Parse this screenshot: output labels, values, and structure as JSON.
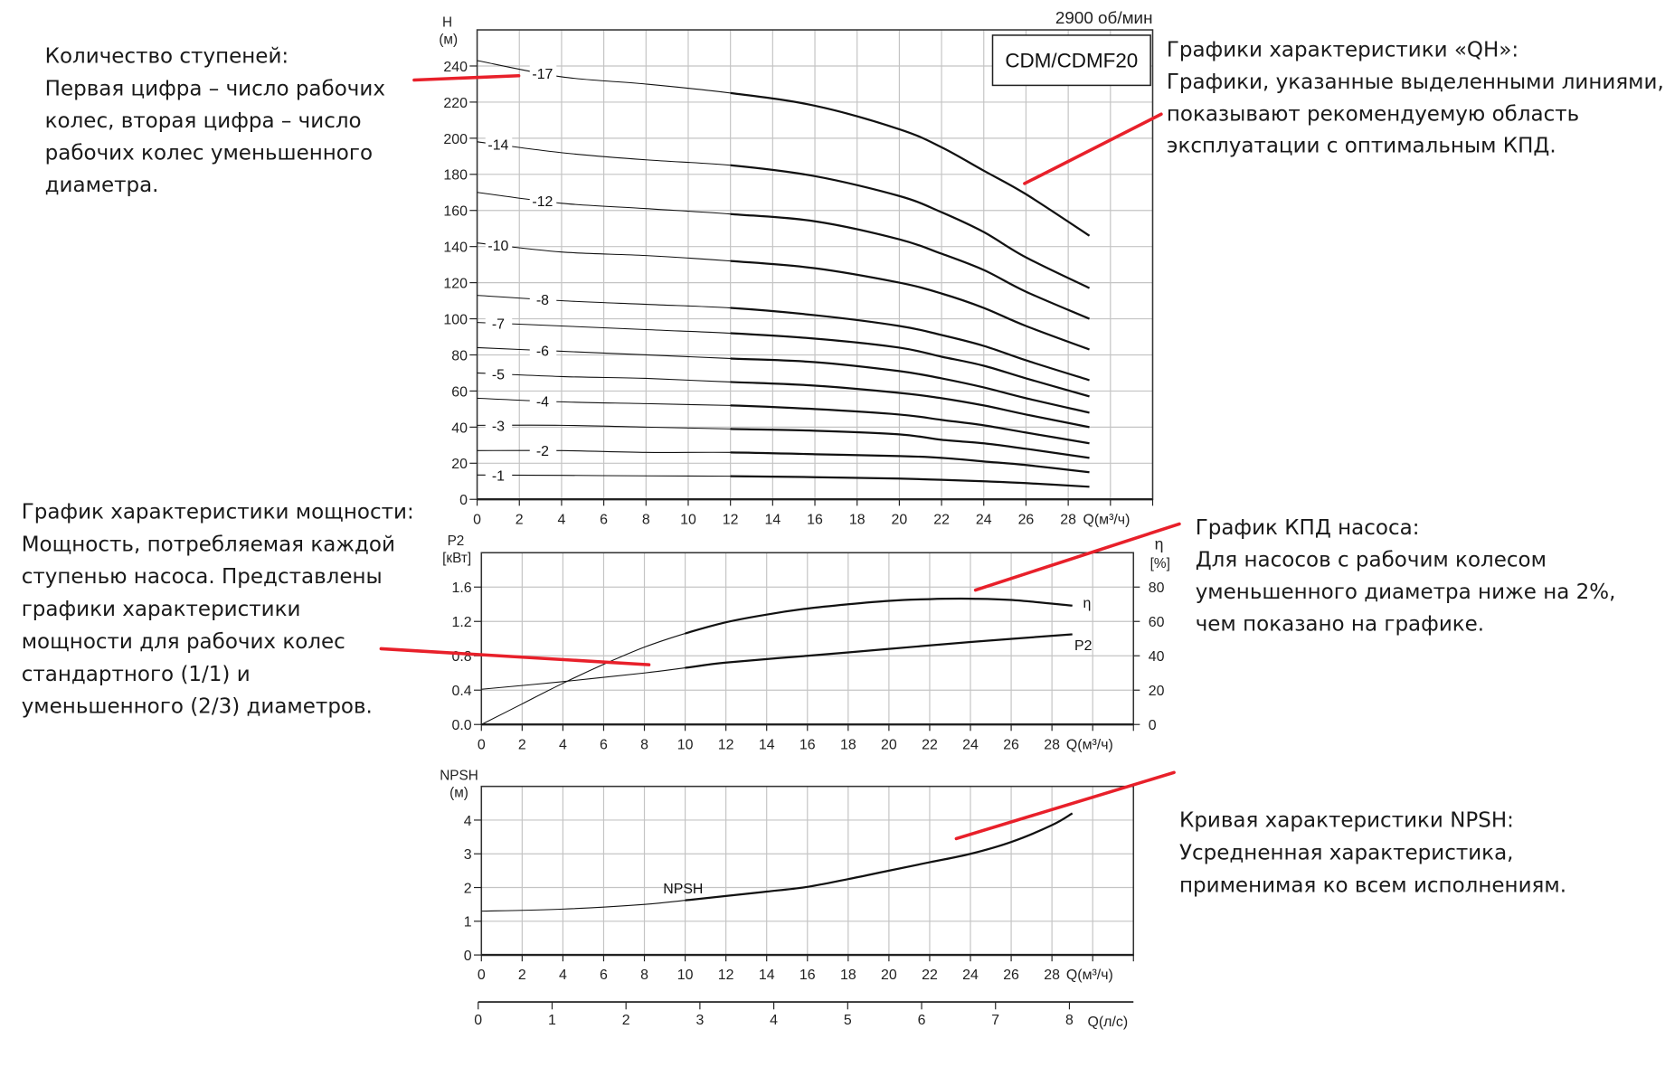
{
  "colors": {
    "pointer": "#e8202a",
    "curve": "#111111",
    "grid": "#c4c4c4"
  },
  "annotations": {
    "stages": {
      "lines": [
        "Количество ступеней:",
        "Первая цифра – число рабочих",
        "колес, вторая цифра – число",
        "рабочих колес уменьшенного",
        "диаметра."
      ]
    },
    "qh": {
      "lines": [
        "Графики характеристики «QH»:",
        "Графики, указанные выделенными линиями,",
        "показывают рекомендуемую область",
        "эксплуатации с оптимальным КПД."
      ]
    },
    "power": {
      "lines": [
        "График характеристики мощности:",
        "Мощность, потребляемая каждой",
        "ступенью насоса. Представлены",
        "графики характеристики",
        "мощности для рабочих колес",
        "стандартного (1/1) и",
        "уменьшенного (2/3) диаметров."
      ]
    },
    "efficiency": {
      "lines": [
        "График КПД насоса:",
        "Для насосов с рабочим колесом",
        "уменьшенного диаметра ниже на 2%,",
        "чем показано на графике."
      ]
    },
    "npsh": {
      "lines": [
        "Кривая характеристики NPSH:",
        "Усредненная характеристика,",
        "применимая ко всем исполнениям."
      ]
    }
  },
  "chart_data": [
    {
      "type": "line",
      "id": "qh",
      "model": "CDM/CDMF20",
      "speed": "2900 об/мин",
      "ylabel": "H",
      "yunit": "(м)",
      "xlabel": "Q(м³/ч)",
      "xlim": [
        0,
        32
      ],
      "ylim": [
        0,
        260
      ],
      "grid": true,
      "xticks": [
        0,
        2,
        4,
        6,
        8,
        10,
        12,
        14,
        16,
        18,
        20,
        22,
        24,
        26,
        28
      ],
      "yticks": [
        0,
        20,
        40,
        60,
        80,
        100,
        120,
        140,
        160,
        180,
        200,
        220,
        240
      ],
      "x": [
        0,
        4,
        8,
        12,
        16,
        20,
        22,
        24,
        26,
        29
      ],
      "series": [
        {
          "name": "-17",
          "values": [
            243,
            234,
            230,
            225,
            218,
            205,
            195,
            182,
            169,
            146
          ]
        },
        {
          "name": "-14",
          "values": [
            198,
            192,
            188,
            185,
            179,
            168,
            159,
            148,
            134,
            117
          ]
        },
        {
          "name": "-12",
          "values": [
            170,
            164,
            161,
            158,
            154,
            144,
            136,
            127,
            115,
            100
          ]
        },
        {
          "name": "-10",
          "values": [
            142,
            137,
            135,
            132,
            128,
            120,
            114,
            106,
            96,
            83
          ]
        },
        {
          "name": "-8",
          "values": [
            113,
            110,
            108,
            106,
            102,
            96,
            91,
            85,
            77,
            66
          ]
        },
        {
          "name": "-7",
          "values": [
            98,
            96,
            94,
            92,
            89,
            84,
            79,
            74,
            67,
            57
          ]
        },
        {
          "name": "-6",
          "values": [
            84,
            82,
            80,
            78,
            76,
            71,
            67,
            62,
            56,
            48
          ]
        },
        {
          "name": "-5",
          "values": [
            70,
            68,
            67,
            65,
            63,
            59,
            56,
            52,
            47,
            40
          ]
        },
        {
          "name": "-4",
          "values": [
            56,
            54,
            53,
            52,
            50,
            47,
            44,
            41,
            37,
            31
          ]
        },
        {
          "name": "-3",
          "values": [
            41,
            41,
            40,
            39,
            38,
            36,
            33,
            31,
            28,
            23
          ]
        },
        {
          "name": "-2",
          "values": [
            27,
            27,
            26,
            26,
            25,
            24,
            23,
            21,
            19,
            15
          ]
        },
        {
          "name": "-1",
          "values": [
            13.5,
            13.3,
            13,
            12.8,
            12.3,
            11.5,
            10.8,
            10,
            9,
            7
          ]
        }
      ]
    },
    {
      "type": "line",
      "id": "power-efficiency",
      "ylabel": "P2",
      "yunit": "[кВт]",
      "y2label": "η",
      "y2unit": "[%]",
      "xlabel": "Q(м³/ч)",
      "xlim": [
        0,
        32
      ],
      "ylim": [
        0,
        2.0
      ],
      "y2lim": [
        0,
        100
      ],
      "grid": true,
      "xticks": [
        0,
        2,
        4,
        6,
        8,
        10,
        12,
        14,
        16,
        18,
        20,
        22,
        24,
        26,
        28
      ],
      "yticks": [
        "0.0",
        "0.4",
        "0.8",
        "1.2",
        "1.6"
      ],
      "y2ticks": [
        0,
        20,
        40,
        60,
        80
      ],
      "series": [
        {
          "name": "η",
          "axis": "right",
          "x": [
            0,
            2,
            4,
            6,
            8,
            10,
            12,
            14,
            16,
            18,
            20,
            22,
            24,
            26,
            29
          ],
          "values": [
            0,
            12,
            24,
            35,
            45,
            53,
            59.5,
            64,
            67.5,
            70,
            72,
            73,
            73.2,
            72.5,
            69.2
          ]
        },
        {
          "name": "P2",
          "axis": "left",
          "x": [
            0,
            4,
            8,
            10,
            12,
            16,
            20,
            24,
            29
          ],
          "values": [
            0.41,
            0.5,
            0.6,
            0.66,
            0.72,
            0.8,
            0.88,
            0.96,
            1.05
          ]
        }
      ]
    },
    {
      "type": "line",
      "id": "npsh",
      "ylabel": "NPSH",
      "yunit": "(м)",
      "xlabel": "Q(м³/ч)",
      "x2label": "Q(л/с)",
      "xlim": [
        0,
        32
      ],
      "ylim": [
        0,
        5
      ],
      "grid": true,
      "xticks": [
        0,
        2,
        4,
        6,
        8,
        10,
        12,
        14,
        16,
        18,
        20,
        22,
        24,
        26,
        28
      ],
      "yticks": [
        0,
        1,
        2,
        3,
        4
      ],
      "x2ticks": [
        0,
        1,
        2,
        3,
        4,
        5,
        6,
        7,
        8
      ],
      "series": [
        {
          "name": "NPSH",
          "x": [
            0,
            4,
            8,
            10,
            12,
            14,
            16,
            18,
            20,
            22,
            24,
            26,
            28,
            29
          ],
          "values": [
            1.3,
            1.36,
            1.5,
            1.62,
            1.75,
            1.88,
            2.02,
            2.25,
            2.5,
            2.75,
            3.0,
            3.35,
            3.85,
            4.2
          ]
        }
      ]
    }
  ]
}
